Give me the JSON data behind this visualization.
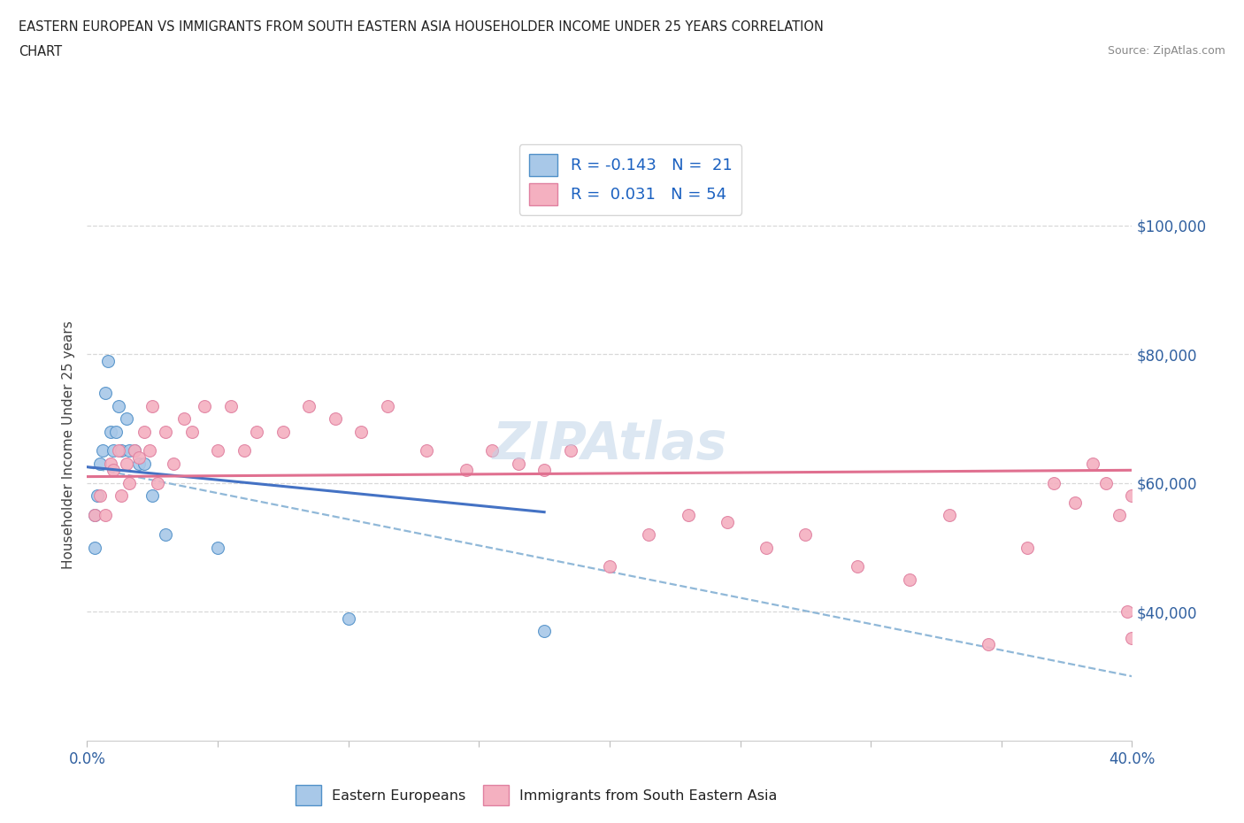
{
  "title_line1": "EASTERN EUROPEAN VS IMMIGRANTS FROM SOUTH EASTERN ASIA HOUSEHOLDER INCOME UNDER 25 YEARS CORRELATION",
  "title_line2": "CHART",
  "source_text": "Source: ZipAtlas.com",
  "ylabel": "Householder Income Under 25 years",
  "xlim": [
    0.0,
    0.4
  ],
  "ylim": [
    20000,
    112000
  ],
  "xticks": [
    0.0,
    0.05,
    0.1,
    0.15,
    0.2,
    0.25,
    0.3,
    0.35,
    0.4
  ],
  "yticks_right": [
    40000,
    60000,
    80000,
    100000
  ],
  "ytick_labels_right": [
    "$40,000",
    "$60,000",
    "$80,000",
    "$100,000"
  ],
  "blue_color": "#a8c8e8",
  "pink_color": "#f4b0c0",
  "blue_edge_color": "#5090c8",
  "pink_edge_color": "#e080a0",
  "blue_line_color": "#4472c4",
  "pink_line_color": "#e07090",
  "dashed_line_color": "#90b8d8",
  "grid_color": "#d8d8d8",
  "watermark_color": "#c0d4e8",
  "eu_line_x0": 0.0,
  "eu_line_y0": 62500,
  "eu_line_x1": 0.175,
  "eu_line_y1": 55500,
  "eu_line_dash_x1": 0.4,
  "eu_line_dash_y1": 30000,
  "sea_line_x0": 0.0,
  "sea_line_y0": 61000,
  "sea_line_x1": 0.4,
  "sea_line_y1": 62000,
  "eastern_european_x": [
    0.003,
    0.003,
    0.004,
    0.005,
    0.006,
    0.007,
    0.008,
    0.009,
    0.01,
    0.011,
    0.012,
    0.013,
    0.015,
    0.016,
    0.018,
    0.02,
    0.022,
    0.025,
    0.03,
    0.05,
    0.1,
    0.175
  ],
  "eastern_european_y": [
    50000,
    55000,
    58000,
    63000,
    65000,
    74000,
    79000,
    68000,
    65000,
    68000,
    72000,
    65000,
    70000,
    65000,
    65000,
    63000,
    63000,
    58000,
    52000,
    50000,
    39000,
    37000
  ],
  "sea_immigrants_x": [
    0.003,
    0.005,
    0.007,
    0.009,
    0.01,
    0.012,
    0.013,
    0.015,
    0.016,
    0.018,
    0.02,
    0.022,
    0.024,
    0.025,
    0.027,
    0.03,
    0.033,
    0.037,
    0.04,
    0.045,
    0.05,
    0.055,
    0.06,
    0.065,
    0.075,
    0.085,
    0.095,
    0.105,
    0.115,
    0.13,
    0.145,
    0.155,
    0.165,
    0.175,
    0.185,
    0.2,
    0.215,
    0.23,
    0.245,
    0.26,
    0.275,
    0.295,
    0.315,
    0.33,
    0.345,
    0.36,
    0.37,
    0.378,
    0.385,
    0.39,
    0.395,
    0.398,
    0.4,
    0.4
  ],
  "sea_immigrants_y": [
    55000,
    58000,
    55000,
    63000,
    62000,
    65000,
    58000,
    63000,
    60000,
    65000,
    64000,
    68000,
    65000,
    72000,
    60000,
    68000,
    63000,
    70000,
    68000,
    72000,
    65000,
    72000,
    65000,
    68000,
    68000,
    72000,
    70000,
    68000,
    72000,
    65000,
    62000,
    65000,
    63000,
    62000,
    65000,
    47000,
    52000,
    55000,
    54000,
    50000,
    52000,
    47000,
    45000,
    55000,
    35000,
    50000,
    60000,
    57000,
    63000,
    60000,
    55000,
    40000,
    36000,
    58000
  ]
}
